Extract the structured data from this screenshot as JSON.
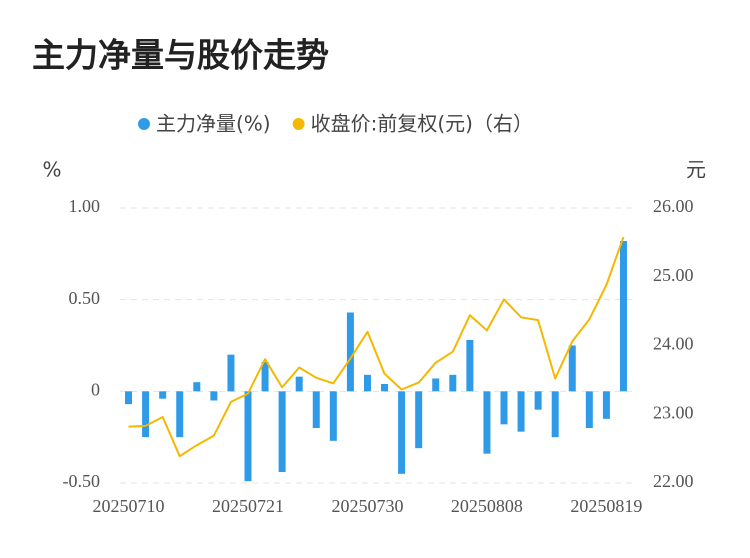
{
  "chart_data": {
    "type": "bar_line",
    "title": "主力净量与股价走势",
    "y_unit": "%",
    "y2_unit": "元",
    "categories": [
      "20250710",
      null,
      null,
      null,
      null,
      null,
      null,
      "20250721",
      null,
      null,
      null,
      null,
      null,
      null,
      "20250730",
      null,
      null,
      null,
      null,
      null,
      null,
      "20250808",
      null,
      null,
      null,
      null,
      null,
      null,
      "20250819",
      null
    ],
    "series": [
      {
        "name": "主力净量(%)",
        "type": "bar",
        "color": "#2f9be8",
        "values": [
          -0.07,
          -0.25,
          -0.04,
          -0.25,
          0.05,
          -0.05,
          0.2,
          -0.49,
          0.16,
          -0.44,
          0.08,
          -0.2,
          -0.27,
          0.43,
          0.09,
          0.04,
          -0.45,
          -0.31,
          0.07,
          0.09,
          0.28,
          -0.34,
          -0.18,
          -0.22,
          -0.1,
          -0.25,
          0.25,
          -0.2,
          -0.15,
          0.82
        ]
      },
      {
        "name": "收盘价:前复权(元)（右）",
        "type": "line",
        "axis": "y2",
        "color": "#f5b800",
        "values": [
          22.82,
          22.83,
          22.96,
          22.39,
          22.55,
          22.69,
          23.18,
          23.3,
          23.8,
          23.39,
          23.68,
          23.53,
          23.45,
          23.81,
          24.2,
          23.59,
          23.36,
          23.46,
          23.75,
          23.91,
          24.44,
          24.22,
          24.67,
          24.41,
          24.37,
          23.52,
          24.06,
          24.38,
          24.88,
          25.58
        ]
      }
    ],
    "ylim": [
      -0.5,
      1.0
    ],
    "yticks": [
      {
        "value": 1,
        "label": "1.00"
      },
      {
        "value": 0.5,
        "label": "0.50"
      },
      0,
      {
        "value": -0.5,
        "label": "-0.50"
      }
    ],
    "y2lim": [
      22,
      26
    ],
    "y2ticks": [
      {
        "value": 26,
        "label": "26.00"
      },
      {
        "value": 25,
        "label": "25.00"
      },
      {
        "value": 24,
        "label": "24.00"
      },
      {
        "value": 23,
        "label": "23.00"
      },
      {
        "value": 22,
        "label": "22.00"
      }
    ],
    "grid": true
  }
}
